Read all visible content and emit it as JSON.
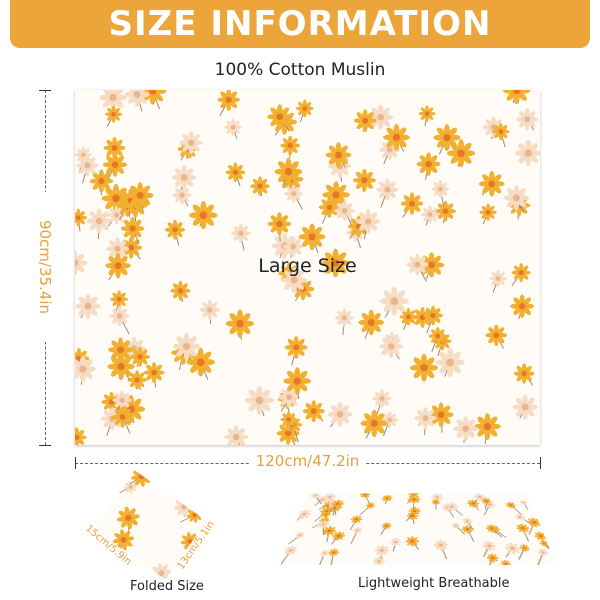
{
  "header": {
    "title": "SIZE INFORMATION",
    "subtitle": "100% Cotton Muslin"
  },
  "main": {
    "label": "Large Size",
    "height_label": "90cm/35.4in",
    "width_label": "120cm/47.2in"
  },
  "folded": {
    "caption": "Folded Size",
    "length_label": "15cm/5.9in",
    "width_label": "13cm/5.1in"
  },
  "flat": {
    "caption": "Lightweight Breathable"
  },
  "colors": {
    "accent": "#EBA53B",
    "flower": "#F2B030",
    "flower_center": "#E8762A",
    "petal_light": "#F6DCC4"
  }
}
